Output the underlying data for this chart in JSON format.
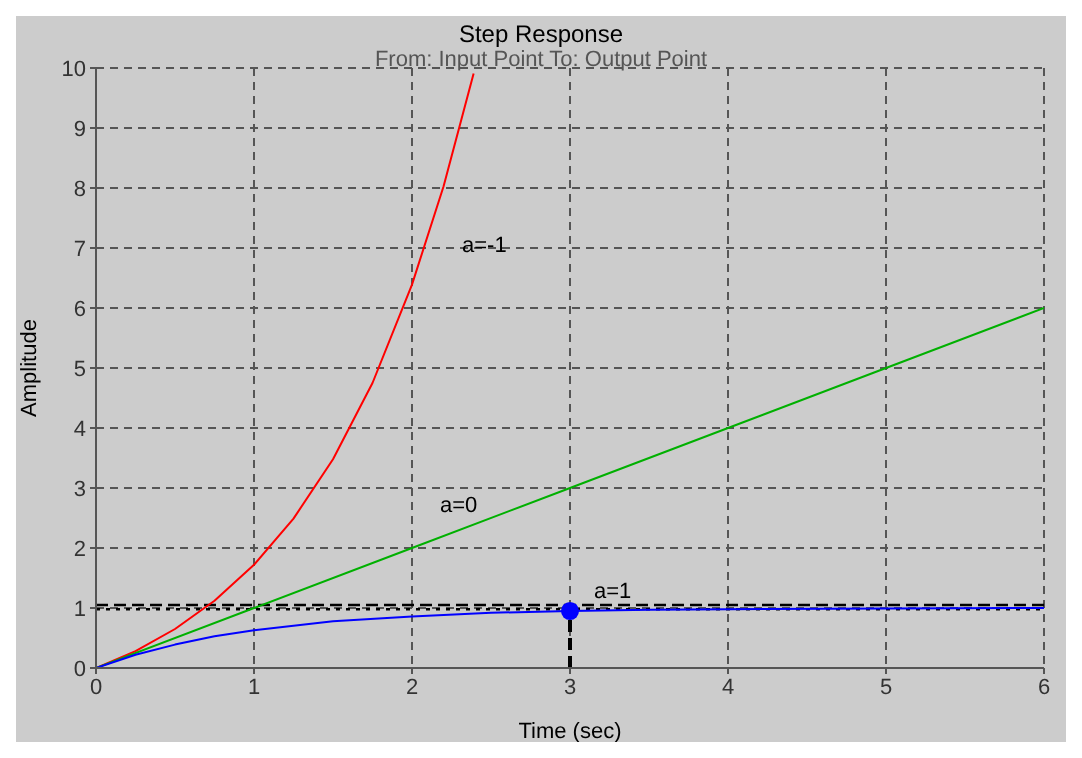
{
  "chart_data": {
    "type": "line",
    "title": "Step Response",
    "subtitle": "From: Input Point  To: Output Point",
    "xlabel": "Time (sec)",
    "ylabel": "Amplitude",
    "series": [
      {
        "color": "#ff0000",
        "x": [
          0,
          0.25,
          0.5,
          0.75,
          1,
          1.25,
          1.5,
          1.75,
          2,
          2.2,
          2.39
        ],
        "values": [
          0,
          0.28,
          0.65,
          1.12,
          1.72,
          2.49,
          3.48,
          4.75,
          6.39,
          8.03,
          9.91
        ]
      },
      {
        "color": "#00b000",
        "x": [
          0,
          1,
          2,
          3,
          4,
          5,
          6
        ],
        "values": [
          0,
          1,
          2,
          3,
          4,
          5,
          6
        ]
      },
      {
        "color": "#0000ff",
        "x": [
          0,
          0.25,
          0.5,
          0.75,
          1,
          1.5,
          2,
          2.5,
          3,
          3.5,
          4,
          5,
          6
        ],
        "values": [
          0,
          0.22,
          0.39,
          0.53,
          0.63,
          0.78,
          0.86,
          0.92,
          0.95,
          0.97,
          0.98,
          0.99,
          1.0
        ]
      },
      {
        "type": "scatter",
        "color": "#0000ff",
        "marker": "circle",
        "x": [
          3
        ],
        "values": [
          0.95
        ]
      }
    ],
    "ref_lines": [
      {
        "axis": "y",
        "value": 1.05,
        "color": "#000000",
        "line_style": "dashed"
      },
      {
        "axis": "y",
        "value": 0.98,
        "color": "#000000",
        "line_style": "dotted"
      },
      {
        "axis": "x",
        "value": 3,
        "color": "#000000",
        "line_style": "dashed"
      }
    ],
    "annotations": [
      "a=-1",
      "a=0",
      "a=1"
    ],
    "xlim": [
      0,
      6
    ],
    "xticks": [
      0,
      1,
      2,
      3,
      4,
      5,
      6
    ],
    "ylim": [
      0,
      10
    ],
    "yticks": [
      0,
      1,
      2,
      3,
      4,
      5,
      6,
      7,
      8,
      9,
      10
    ],
    "grid": true,
    "line_style": "solid",
    "marker": "none"
  }
}
